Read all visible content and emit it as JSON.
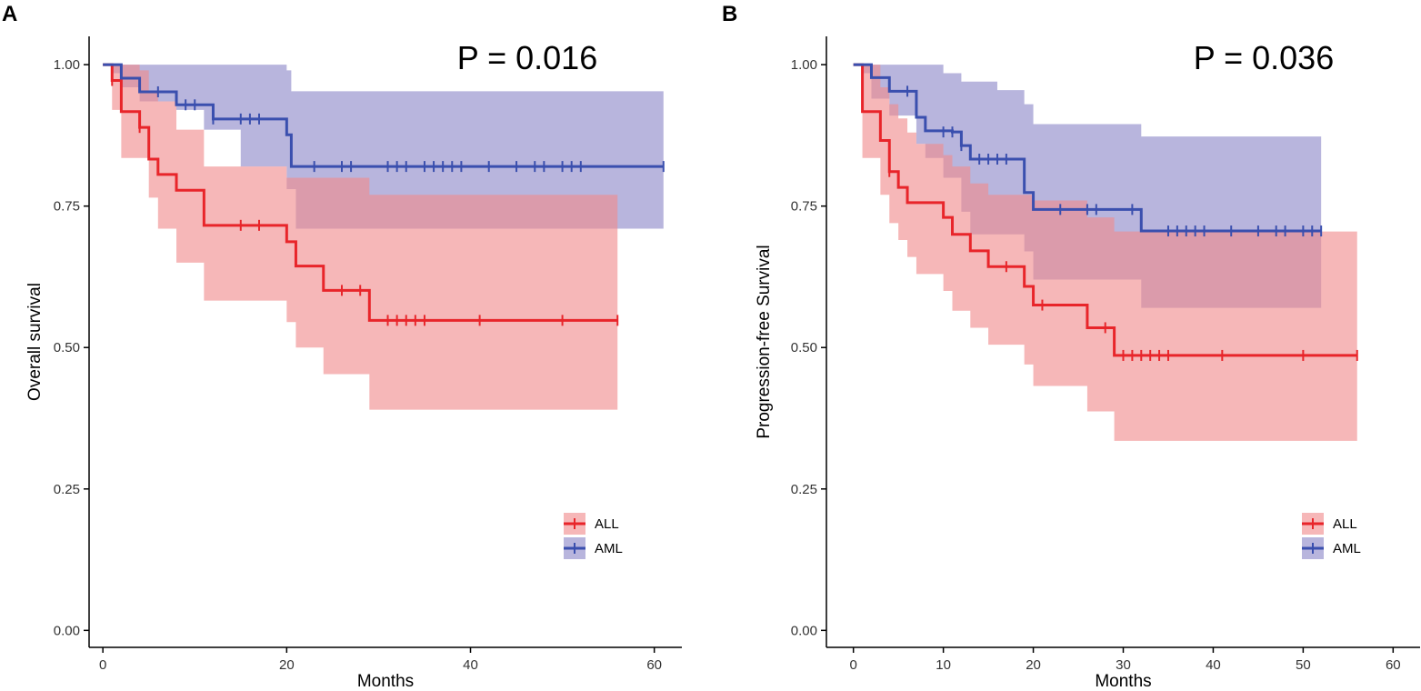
{
  "colors": {
    "all_line": "#e8252a",
    "all_band": "#f08a8c",
    "aml_line": "#3a4fae",
    "aml_band": "#8d88c8",
    "axis": "#000000",
    "tick_text": "#333333"
  },
  "chart_data": [
    {
      "panel_label": "A",
      "type": "line",
      "title": "",
      "pvalue": "P = 0.016",
      "xlabel": "Months",
      "ylabel": "Overall survival",
      "xlim": [
        -1.5,
        63
      ],
      "ylim": [
        -0.03,
        1.05
      ],
      "xticks": [
        0,
        20,
        40,
        60
      ],
      "yticks": [
        0,
        0.25,
        0.5,
        0.75,
        1
      ],
      "ytick_labels": [
        "0.00",
        "0.25",
        "0.50",
        "0.75",
        "1.00"
      ],
      "legend": [
        "ALL",
        "AML"
      ],
      "legend_position": "bottom-right",
      "series": [
        {
          "name": "ALL",
          "steps": [
            [
              0,
              1
            ],
            [
              1,
              0.972
            ],
            [
              2,
              0.917
            ],
            [
              4,
              0.889
            ],
            [
              5,
              0.833
            ],
            [
              6,
              0.806
            ],
            [
              8,
              0.778
            ],
            [
              11,
              0.716
            ],
            [
              20,
              0.687
            ],
            [
              21,
              0.644
            ],
            [
              24,
              0.601
            ],
            [
              29,
              0.548
            ],
            [
              56,
              0.548
            ]
          ],
          "lower": [
            [
              0,
              1
            ],
            [
              1,
              0.92
            ],
            [
              2,
              0.835
            ],
            [
              5,
              0.765
            ],
            [
              6,
              0.71
            ],
            [
              8,
              0.65
            ],
            [
              11,
              0.583
            ],
            [
              20,
              0.545
            ],
            [
              21,
              0.5
            ],
            [
              24,
              0.453
            ],
            [
              29,
              0.39
            ],
            [
              56,
              0.39
            ]
          ],
          "upper": [
            [
              0,
              1
            ],
            [
              2,
              1
            ],
            [
              4,
              0.99
            ],
            [
              5,
              0.95
            ],
            [
              6,
              0.935
            ],
            [
              8,
              0.885
            ],
            [
              11,
              0.82
            ],
            [
              20,
              0.8
            ],
            [
              23,
              0.8
            ],
            [
              29,
              0.77
            ],
            [
              56,
              0.77
            ]
          ],
          "censors": [
            [
              1,
              0.972
            ],
            [
              4,
              0.889
            ],
            [
              15,
              0.716
            ],
            [
              17,
              0.716
            ],
            [
              26,
              0.601
            ],
            [
              28,
              0.601
            ],
            [
              31,
              0.548
            ],
            [
              32,
              0.548
            ],
            [
              33,
              0.548
            ],
            [
              34,
              0.548
            ],
            [
              35,
              0.548
            ],
            [
              41,
              0.548
            ],
            [
              50,
              0.548
            ],
            [
              56,
              0.548
            ]
          ]
        },
        {
          "name": "AML",
          "steps": [
            [
              0,
              1
            ],
            [
              2,
              0.976
            ],
            [
              4,
              0.952
            ],
            [
              8,
              0.929
            ],
            [
              12,
              0.904
            ],
            [
              20,
              0.876
            ],
            [
              20.5,
              0.82
            ],
            [
              61,
              0.82
            ]
          ],
          "lower": [
            [
              0,
              1
            ],
            [
              1,
              0.985
            ],
            [
              2,
              0.96
            ],
            [
              4,
              0.935
            ],
            [
              8,
              0.92
            ],
            [
              11,
              0.885
            ],
            [
              15,
              0.82
            ],
            [
              20,
              0.78
            ],
            [
              21,
              0.71
            ],
            [
              56,
              0.71
            ],
            [
              61,
              0.71
            ]
          ],
          "upper": [
            [
              0,
              1
            ],
            [
              4,
              1
            ],
            [
              12,
              1
            ],
            [
              20,
              0.99
            ],
            [
              20.5,
              0.953
            ],
            [
              61,
              0.953
            ]
          ],
          "censors": [
            [
              6,
              0.952
            ],
            [
              9,
              0.929
            ],
            [
              10,
              0.929
            ],
            [
              12,
              0.904
            ],
            [
              15,
              0.904
            ],
            [
              16,
              0.904
            ],
            [
              17,
              0.904
            ],
            [
              23,
              0.82
            ],
            [
              26,
              0.82
            ],
            [
              27,
              0.82
            ],
            [
              31,
              0.82
            ],
            [
              32,
              0.82
            ],
            [
              33,
              0.82
            ],
            [
              35,
              0.82
            ],
            [
              36,
              0.82
            ],
            [
              37,
              0.82
            ],
            [
              38,
              0.82
            ],
            [
              39,
              0.82
            ],
            [
              42,
              0.82
            ],
            [
              45,
              0.82
            ],
            [
              47,
              0.82
            ],
            [
              48,
              0.82
            ],
            [
              50,
              0.82
            ],
            [
              51,
              0.82
            ],
            [
              52,
              0.82
            ],
            [
              61,
              0.82
            ]
          ]
        }
      ]
    },
    {
      "panel_label": "B",
      "type": "line",
      "title": "",
      "pvalue": "P = 0.036",
      "xlabel": "Months",
      "ylabel": "Progression-free Survival",
      "xlim": [
        -3,
        63
      ],
      "ylim": [
        -0.03,
        1.05
      ],
      "xticks": [
        0,
        10,
        20,
        30,
        40,
        50,
        60
      ],
      "yticks": [
        0,
        0.25,
        0.5,
        0.75,
        1
      ],
      "ytick_labels": [
        "0.00",
        "0.25",
        "0.50",
        "0.75",
        "1.00"
      ],
      "legend": [
        "ALL",
        "AML"
      ],
      "legend_position": "bottom-right",
      "series": [
        {
          "name": "ALL",
          "steps": [
            [
              0,
              1
            ],
            [
              1,
              0.917
            ],
            [
              3,
              0.866
            ],
            [
              4,
              0.811
            ],
            [
              5,
              0.783
            ],
            [
              6,
              0.756
            ],
            [
              10,
              0.73
            ],
            [
              11,
              0.7
            ],
            [
              13,
              0.671
            ],
            [
              15,
              0.643
            ],
            [
              19,
              0.608
            ],
            [
              20,
              0.575
            ],
            [
              26,
              0.535
            ],
            [
              29,
              0.486
            ],
            [
              56,
              0.486
            ]
          ],
          "lower": [
            [
              0,
              1
            ],
            [
              1,
              0.835
            ],
            [
              3,
              0.77
            ],
            [
              4,
              0.72
            ],
            [
              5,
              0.69
            ],
            [
              6,
              0.66
            ],
            [
              7,
              0.63
            ],
            [
              10,
              0.6
            ],
            [
              11,
              0.565
            ],
            [
              13,
              0.535
            ],
            [
              15,
              0.505
            ],
            [
              19,
              0.47
            ],
            [
              20,
              0.432
            ],
            [
              26,
              0.387
            ],
            [
              29,
              0.335
            ],
            [
              56,
              0.335
            ]
          ],
          "upper": [
            [
              0,
              1
            ],
            [
              2,
              1
            ],
            [
              3,
              0.96
            ],
            [
              4,
              0.93
            ],
            [
              5,
              0.905
            ],
            [
              6,
              0.88
            ],
            [
              7,
              0.86
            ],
            [
              10,
              0.84
            ],
            [
              11,
              0.82
            ],
            [
              13,
              0.79
            ],
            [
              15,
              0.77
            ],
            [
              19,
              0.77
            ],
            [
              20,
              0.76
            ],
            [
              26,
              0.73
            ],
            [
              29,
              0.705
            ],
            [
              56,
              0.705
            ]
          ],
          "censors": [
            [
              4,
              0.811
            ],
            [
              17,
              0.643
            ],
            [
              21,
              0.575
            ],
            [
              28,
              0.535
            ],
            [
              30,
              0.486
            ],
            [
              31,
              0.486
            ],
            [
              32,
              0.486
            ],
            [
              33,
              0.486
            ],
            [
              34,
              0.486
            ],
            [
              35,
              0.486
            ],
            [
              41,
              0.486
            ],
            [
              50,
              0.486
            ],
            [
              56,
              0.486
            ]
          ]
        },
        {
          "name": "AML",
          "steps": [
            [
              0,
              1
            ],
            [
              2,
              0.977
            ],
            [
              4,
              0.953
            ],
            [
              7,
              0.907
            ],
            [
              8,
              0.883
            ],
            [
              11,
              0.881
            ],
            [
              12,
              0.857
            ],
            [
              13,
              0.833
            ],
            [
              19,
              0.774
            ],
            [
              20,
              0.744
            ],
            [
              32,
              0.706
            ],
            [
              52,
              0.706
            ]
          ],
          "lower": [
            [
              0,
              1
            ],
            [
              1,
              0.985
            ],
            [
              2,
              0.94
            ],
            [
              4,
              0.91
            ],
            [
              7,
              0.86
            ],
            [
              8,
              0.835
            ],
            [
              10,
              0.8
            ],
            [
              12,
              0.74
            ],
            [
              13,
              0.7
            ],
            [
              19,
              0.67
            ],
            [
              20,
              0.62
            ],
            [
              32,
              0.57
            ],
            [
              52,
              0.57
            ]
          ],
          "upper": [
            [
              0,
              1
            ],
            [
              4,
              1
            ],
            [
              10,
              0.985
            ],
            [
              12,
              0.97
            ],
            [
              16,
              0.955
            ],
            [
              19,
              0.93
            ],
            [
              20,
              0.895
            ],
            [
              32,
              0.873
            ],
            [
              52,
              0.873
            ]
          ],
          "censors": [
            [
              6,
              0.953
            ],
            [
              10,
              0.881
            ],
            [
              11,
              0.881
            ],
            [
              12,
              0.857
            ],
            [
              14,
              0.833
            ],
            [
              15,
              0.833
            ],
            [
              16,
              0.833
            ],
            [
              17,
              0.833
            ],
            [
              23,
              0.744
            ],
            [
              26,
              0.744
            ],
            [
              27,
              0.744
            ],
            [
              31,
              0.744
            ],
            [
              35,
              0.706
            ],
            [
              36,
              0.706
            ],
            [
              37,
              0.706
            ],
            [
              38,
              0.706
            ],
            [
              39,
              0.706
            ],
            [
              42,
              0.706
            ],
            [
              45,
              0.706
            ],
            [
              47,
              0.706
            ],
            [
              48,
              0.706
            ],
            [
              50,
              0.706
            ],
            [
              51,
              0.706
            ],
            [
              52,
              0.706
            ]
          ]
        }
      ]
    }
  ]
}
